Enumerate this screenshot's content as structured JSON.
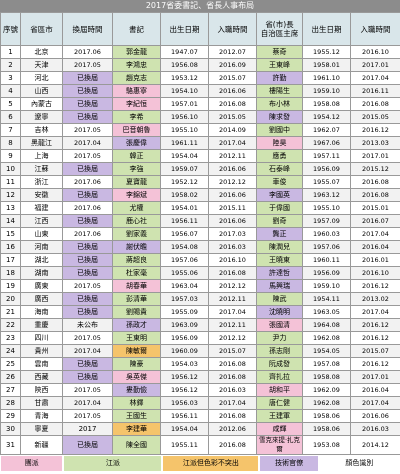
{
  "title": "2017省委書記、省長人事布局",
  "header": [
    "序號",
    "省區市",
    "換屆時間",
    "書記",
    "出生日期",
    "入職時間",
    "省(市)長\n自治區主席",
    "出生日期",
    "入職時間"
  ],
  "rows": [
    {
      "cells": [
        1,
        "北京",
        "2017.06",
        "郭金龍",
        "1947.07",
        "2012.07",
        "蔡奇",
        "1955.12",
        "2016.10"
      ],
      "fills": {
        "3": "#cfe3b0",
        "6": "#cfe3b0"
      }
    },
    {
      "cells": [
        2,
        "天津",
        "2017.05",
        "李鴻忠",
        "1956.08",
        "2016.09",
        "王東峰",
        "1958.01",
        "2017.01"
      ],
      "fills": {
        "3": "#cfe3b0",
        "6": "#cfe3b0"
      }
    },
    {
      "cells": [
        3,
        "河北",
        "已換屆",
        "趙克志",
        "1953.12",
        "2015.07",
        "許勤",
        "1961.10",
        "2017.04"
      ],
      "fills": {
        "2": "#c9b8e2",
        "3": "#cfe3b0",
        "6": "#c9b8e2"
      }
    },
    {
      "cells": [
        4,
        "山西",
        "已換屆",
        "駱惠寧",
        "1954.10",
        "2016.06",
        "樓陽生",
        "1959.10",
        "2016.11"
      ],
      "fills": {
        "2": "#c9b8e2",
        "3": "#f4c2d7",
        "6": "#cfe3b0"
      }
    },
    {
      "cells": [
        5,
        "內蒙古",
        "已換屆",
        "李紀恒",
        "1957.01",
        "2016.08",
        "布小林",
        "1958.08",
        "2016.08"
      ],
      "fills": {
        "2": "#c9b8e2",
        "3": "#f4c2d7",
        "6": "#cfe3b0"
      }
    },
    {
      "cells": [
        6,
        "遼寧",
        "已換屆",
        "李希",
        "1956.10",
        "2015.05",
        "陳求發",
        "1954.12",
        "2015.05"
      ],
      "fills": {
        "2": "#c9b8e2",
        "3": "#cfe3b0",
        "6": "#c9b8e2"
      }
    },
    {
      "cells": [
        7,
        "吉林",
        "2017.05",
        "巴音朝魯",
        "1955.10",
        "2014.09",
        "劉國中",
        "1962.07",
        "2016.12"
      ],
      "fills": {
        "3": "#f4c2d7",
        "6": "#cfe3b0"
      }
    },
    {
      "cells": [
        8,
        "黑龍江",
        "2017.04",
        "張慶偉",
        "1961.11",
        "2017.04",
        "陸昊",
        "1967.06",
        "2013.03"
      ],
      "fills": {
        "3": "#c9b8e2",
        "6": "#f4c2d7"
      }
    },
    {
      "cells": [
        9,
        "上海",
        "2017.05",
        "韓正",
        "1954.04",
        "2012.11",
        "應勇",
        "1957.11",
        "2017.01"
      ],
      "fills": {
        "3": "#cfe3b0",
        "6": "#cfe3b0"
      }
    },
    {
      "cells": [
        10,
        "江蘇",
        "已換屆",
        "李強",
        "1959.07",
        "2016.06",
        "石泰峰",
        "1956.09",
        "2015.12"
      ],
      "fills": {
        "2": "#c9b8e2",
        "3": "#cfe3b0",
        "6": "#cfe3b0"
      }
    },
    {
      "cells": [
        11,
        "浙江",
        "2017.06",
        "夏寶龍",
        "1952.12",
        "2012.12",
        "車俊",
        "1955.07",
        "2016.08"
      ],
      "fills": {
        "3": "#cfe3b0",
        "6": "#cfe3b0"
      }
    },
    {
      "cells": [
        12,
        "安徽",
        "已換屆",
        "李錦斌",
        "1958.02",
        "2016.06",
        "李國英",
        "1963.12",
        "2016.08"
      ],
      "fills": {
        "2": "#c9b8e2",
        "3": "#f4c2d7",
        "6": "#c9b8e2"
      }
    },
    {
      "cells": [
        13,
        "福建",
        "2017.06",
        "尤權",
        "1954.01",
        "2015.11",
        "于偉國",
        "1955.10",
        "2015.01"
      ],
      "fills": {
        "3": "#cfe3b0",
        "6": "#cfe3b0"
      }
    },
    {
      "cells": [
        14,
        "江西",
        "已換屆",
        "鹿心社",
        "1956.11",
        "2016.06",
        "劉奇",
        "1957.09",
        "2016.07"
      ],
      "fills": {
        "2": "#c9b8e2",
        "3": "#cfe3b0",
        "6": "#cfe3b0"
      }
    },
    {
      "cells": [
        15,
        "山東",
        "2017.06",
        "劉家義",
        "1956.07",
        "2017.03",
        "龔正",
        "1960.03",
        "2017.04"
      ],
      "fills": {
        "3": "#cfe3b0",
        "6": "#c9b8e2"
      }
    },
    {
      "cells": [
        16,
        "河南",
        "已換屆",
        "謝伏瞻",
        "1954.08",
        "2016.03",
        "陳潤兒",
        "1957.06",
        "2016.04"
      ],
      "fills": {
        "2": "#c9b8e2",
        "3": "#c9b8e2",
        "6": "#cfe3b0"
      }
    },
    {
      "cells": [
        17,
        "湖北",
        "已換屆",
        "蔣超良",
        "1957.06",
        "2016.10",
        "王曉東",
        "1960.11",
        "2016.01"
      ],
      "fills": {
        "2": "#c9b8e2",
        "3": "#cfe3b0",
        "6": "#cfe3b0"
      }
    },
    {
      "cells": [
        18,
        "湖南",
        "已換屆",
        "杜家毫",
        "1955.06",
        "2016.08",
        "許達哲",
        "1956.09",
        "2016.10"
      ],
      "fills": {
        "2": "#c9b8e2",
        "3": "#cfe3b0",
        "6": "#c9b8e2"
      }
    },
    {
      "cells": [
        19,
        "廣東",
        "2017.05",
        "胡春華",
        "1963.04",
        "2012.12",
        "馬興瑞",
        "1959.10",
        "2016.12"
      ],
      "fills": {
        "3": "#f4c2d7",
        "6": "#c9b8e2"
      }
    },
    {
      "cells": [
        20,
        "廣西",
        "已換屆",
        "彭清華",
        "1957.03",
        "2012.11",
        "陳武",
        "1954.11",
        "2013.02"
      ],
      "fills": {
        "2": "#c9b8e2",
        "3": "#cfe3b0",
        "6": "#cfe3b0"
      }
    },
    {
      "cells": [
        21,
        "海南",
        "已換屆",
        "劉賜貴",
        "1955.09",
        "2017.04",
        "沈曉明",
        "1963.05",
        "2017.04"
      ],
      "fills": {
        "2": "#c9b8e2",
        "3": "#cfe3b0",
        "6": "#c9b8e2"
      }
    },
    {
      "cells": [
        22,
        "重慶",
        "未公布",
        "孫政才",
        "1963.09",
        "2012.11",
        "張國清",
        "1964.08",
        "2016.12"
      ],
      "fills": {
        "3": "#c9b8e2",
        "6": "#f4c2d7"
      }
    },
    {
      "cells": [
        23,
        "四川",
        "2017.05",
        "王東明",
        "1956.09",
        "2012.12",
        "尹力",
        "1962.08",
        "2016.12"
      ],
      "fills": {
        "3": "#cfe3b0",
        "6": "#cfe3b0"
      }
    },
    {
      "cells": [
        24,
        "貴州",
        "2017.04",
        "陳敏爾",
        "1960.09",
        "2015.07",
        "孫志剛",
        "1954.05",
        "2015.07"
      ],
      "fills": {
        "3": "#f5c46b",
        "6": "#cfe3b0"
      }
    },
    {
      "cells": [
        25,
        "雲南",
        "已換屆",
        "陳豪",
        "1954.03",
        "2016.08",
        "阮成發",
        "1957.08",
        "2016.12"
      ],
      "fills": {
        "2": "#c9b8e2",
        "3": "#cfe3b0",
        "6": "#cfe3b0"
      }
    },
    {
      "cells": [
        26,
        "西藏",
        "已換屆",
        "吳英傑",
        "1956.12",
        "2016.08",
        "齊扎拉",
        "1958.08",
        "2017.01"
      ],
      "fills": {
        "2": "#c9b8e2",
        "3": "#f4c2d7",
        "6": "#cfe3b0"
      }
    },
    {
      "cells": [
        27,
        "陝西",
        "2017.05",
        "婁勤儉",
        "1956.12",
        "2016.03",
        "胡和平",
        "1962.09",
        "2016.04"
      ],
      "fills": {
        "3": "#c9b8e2",
        "6": "#f4c2d7"
      }
    },
    {
      "cells": [
        28,
        "甘肅",
        "2017.04",
        "林鐸",
        "1956.03",
        "2017.04",
        "唐仁健",
        "1962.08",
        "2017.04"
      ],
      "fills": {
        "3": "#cfe3b0",
        "6": "#cfe3b0"
      }
    },
    {
      "cells": [
        29,
        "青海",
        "2017.05",
        "王國生",
        "1956.11",
        "2016.08",
        "王建軍",
        "1958.06",
        "2016.06"
      ],
      "fills": {
        "3": "#cfe3b0",
        "6": "#cfe3b0"
      }
    },
    {
      "cells": [
        30,
        "寧夏",
        "2017",
        "李建華",
        "1954.04",
        "2012.06",
        "咸輝",
        "1958.06",
        "2016.03"
      ],
      "fills": {
        "3": "#f5c46b",
        "6": "#f4c2d7"
      }
    },
    {
      "cells": [
        31,
        "新疆",
        "已換屆",
        "陳全國",
        "1955.11",
        "2016.08",
        "雪克來提·扎克爾",
        "1953.08",
        "2014.12"
      ],
      "fills": {
        "2": "#c9b8e2",
        "3": "#cfe3b0",
        "6": "#f4c2d7"
      }
    }
  ],
  "legend": {
    "items": [
      {
        "label": "團派",
        "color": "#f4c2d7"
      },
      {
        "label": "江派",
        "color": "#cfe3b0"
      },
      {
        "label": "江派但色彩不突出",
        "color": "#f5c46b"
      },
      {
        "label": "技術官僚",
        "color": "#c9b8e2"
      }
    ],
    "caption": "顏色識別"
  }
}
